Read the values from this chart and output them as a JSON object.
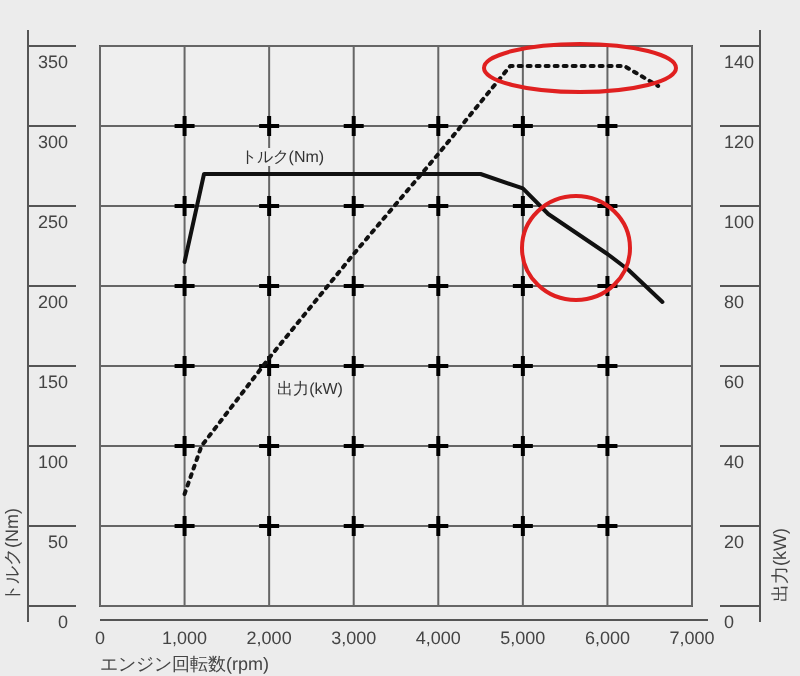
{
  "chart_data": {
    "type": "line",
    "xlabel": "エンジン回転数(rpm)",
    "ylabel": "トルク(Nm)",
    "y2label": "出力(kW)",
    "xlim": [
      0,
      7000
    ],
    "xticks": [
      0,
      {
        "value": 1000,
        "label": "1,000"
      },
      {
        "value": 2000,
        "label": "2,000"
      },
      {
        "value": 3000,
        "label": "3,000"
      },
      {
        "value": 4000,
        "label": "4,000"
      },
      {
        "value": 5000,
        "label": "5,000"
      },
      {
        "value": 6000,
        "label": "6,000"
      },
      {
        "value": 7000,
        "label": "7,000"
      }
    ],
    "ylim": [
      0,
      350
    ],
    "yticks": [
      0,
      50,
      100,
      150,
      200,
      250,
      300,
      350
    ],
    "y2lim": [
      0,
      140
    ],
    "y2ticks": [
      0,
      20,
      40,
      60,
      80,
      100,
      120,
      140
    ],
    "grid": true,
    "marker": "none",
    "series": [
      {
        "name": "トルク(Nm)",
        "color": "#111111",
        "line_style": "solid",
        "x": [
          1000,
          1230,
          4500,
          5000,
          5300,
          6000,
          6250,
          6650
        ],
        "values": [
          215,
          270,
          270,
          261,
          245,
          220,
          210,
          190
        ]
      },
      {
        "name": "出力(kW)",
        "color": "#111111",
        "line_style": "dotted",
        "axis": "y2",
        "x": [
          1000,
          1200,
          2000,
          3000,
          4000,
          4850,
          6200,
          6600
        ],
        "values": [
          28,
          40,
          62,
          88,
          113,
          135,
          135,
          130
        ]
      }
    ]
  }
}
